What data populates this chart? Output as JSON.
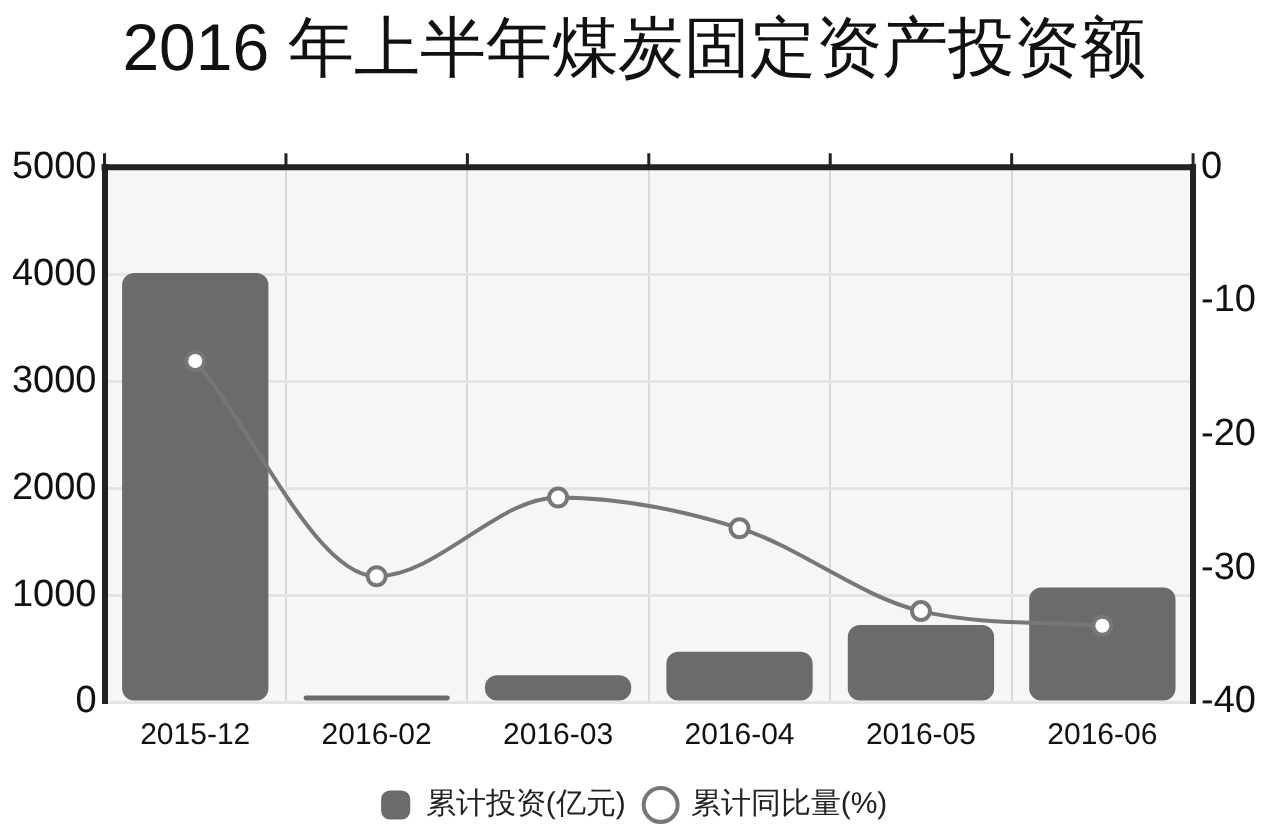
{
  "chart_data": {
    "type": "bar",
    "title": "2016 年上半年煤炭固定资产投资额",
    "categories": [
      "2015-12",
      "2016-02",
      "2016-03",
      "2016-04",
      "2016-05",
      "2016-06"
    ],
    "series": [
      {
        "name": "累计投资(亿元)",
        "color": "#6b6b6b",
        "values": [
          4010,
          60,
          250,
          470,
          720,
          1070
        ]
      },
      {
        "name": "累计同比量(%)",
        "type": "line",
        "axis": "y2",
        "color": "#777777",
        "values": [
          -14.5,
          -30.6,
          -24.7,
          -27.0,
          -33.2,
          -34.3
        ]
      }
    ],
    "ylim": [
      0,
      5000
    ],
    "yticks": [
      0,
      1000,
      2000,
      3000,
      4000,
      5000
    ],
    "y2lim": [
      -40,
      0
    ],
    "y2ticks": [
      0,
      -10,
      -20,
      -30,
      -40
    ],
    "grid": true,
    "legend": "bottom",
    "marker": "circle"
  }
}
